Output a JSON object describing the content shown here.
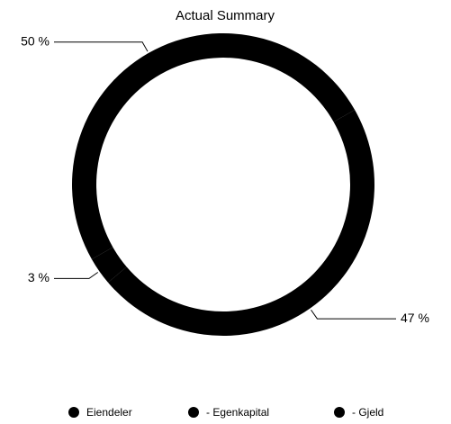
{
  "chart_data": {
    "type": "donut",
    "title": "Actual Summary",
    "categories": [
      "Eiendeler",
      "- Egenkapital",
      "- Gjeld"
    ],
    "values": [
      50,
      3,
      47
    ],
    "value_labels": [
      "50 %",
      "3 %",
      "47 %"
    ],
    "colors": [
      "#000000",
      "#000000",
      "#000000"
    ],
    "legend": "bottom"
  }
}
